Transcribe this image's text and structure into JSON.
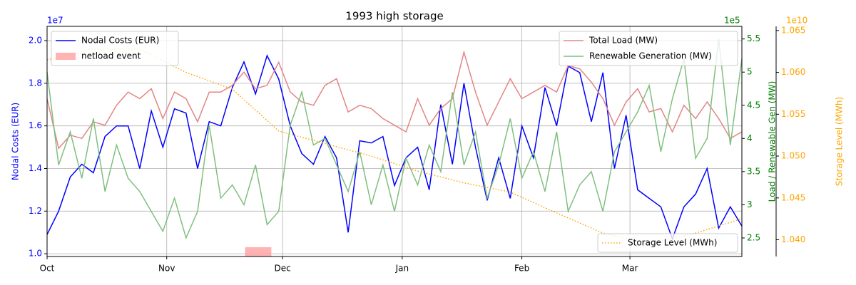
{
  "chart_data": {
    "type": "line",
    "title": "1993 high storage",
    "x": [
      0,
      3,
      6,
      9,
      12,
      15,
      18,
      21,
      24,
      27,
      30,
      33,
      36,
      39,
      42,
      45,
      48,
      51,
      54,
      57,
      60,
      63,
      66,
      69,
      72,
      75,
      78,
      81,
      84,
      87,
      90,
      93,
      96,
      99,
      102,
      105,
      108,
      111,
      114,
      117,
      120,
      123,
      126,
      129,
      132,
      135,
      138,
      141,
      144,
      147,
      150,
      153,
      156,
      159,
      162,
      165,
      168,
      171,
      174,
      177,
      180
    ],
    "xlim": [
      0,
      180
    ],
    "xticks": [
      {
        "value": 0,
        "label": "Oct"
      },
      {
        "value": 31,
        "label": "Nov"
      },
      {
        "value": 61,
        "label": "Dec"
      },
      {
        "value": 92,
        "label": "Jan"
      },
      {
        "value": 123,
        "label": "Feb"
      },
      {
        "value": 151,
        "label": "Mar"
      }
    ],
    "grid": true,
    "ylabel": "Nodal Costs (EUR)",
    "yoffset": "1e7",
    "ycolor": "blue",
    "ylim": [
      0.987,
      2.067
    ],
    "yticks": [
      {
        "value": 1.0,
        "label": "1.0"
      },
      {
        "value": 1.2,
        "label": "1.2"
      },
      {
        "value": 1.4,
        "label": "1.4"
      },
      {
        "value": 1.6,
        "label": "1.6"
      },
      {
        "value": 1.8,
        "label": "1.8"
      },
      {
        "value": 2.0,
        "label": "2.0"
      }
    ],
    "y2label": "Load / Renewable Gen (MW)",
    "y2offset": "1e5",
    "y2color": "green",
    "y2lim": [
      2.22,
      5.69
    ],
    "y2ticks": [
      2.5,
      3.0,
      3.5,
      4.0,
      4.5,
      5.0,
      5.5
    ],
    "y3label": "Storage Level (MWh)",
    "y3offset": "1e10",
    "y3color": "orange",
    "y3lim": [
      1.038,
      1.0655
    ],
    "y3ticks": [
      {
        "value": 1.04,
        "label": "1.040"
      },
      {
        "value": 1.045,
        "label": "1.045"
      },
      {
        "value": 1.05,
        "label": "1.050"
      },
      {
        "value": 1.055,
        "label": "1.055"
      },
      {
        "value": 1.06,
        "label": "1.060"
      },
      {
        "value": 1.065,
        "label": "1.065"
      }
    ],
    "series": [
      {
        "name": "Nodal Costs (EUR)",
        "color": "#0000ff",
        "axis": "y",
        "legend": "upper left",
        "values": [
          1.09,
          1.2,
          1.36,
          1.42,
          1.38,
          1.55,
          1.6,
          1.6,
          1.4,
          1.67,
          1.5,
          1.68,
          1.66,
          1.4,
          1.62,
          1.6,
          1.78,
          1.9,
          1.75,
          1.93,
          1.82,
          1.6,
          1.47,
          1.42,
          1.55,
          1.45,
          1.1,
          1.53,
          1.52,
          1.55,
          1.32,
          1.45,
          1.5,
          1.3,
          1.7,
          1.42,
          1.8,
          1.5,
          1.25,
          1.45,
          1.26,
          1.6,
          1.45,
          1.78,
          1.6,
          1.88,
          1.85,
          1.62,
          1.85,
          1.4,
          1.65,
          1.3,
          1.26,
          1.22,
          1.07,
          1.22,
          1.28,
          1.4,
          1.12,
          1.22,
          1.13
        ]
      },
      {
        "name": "Total Load (MW)",
        "color": "#e38585",
        "axis": "y2",
        "legend": "upper right",
        "values": [
          4.6,
          3.85,
          4.05,
          4.0,
          4.25,
          4.2,
          4.5,
          4.7,
          4.6,
          4.75,
          4.3,
          4.7,
          4.6,
          4.25,
          4.7,
          4.7,
          4.8,
          5.0,
          4.75,
          4.8,
          5.15,
          4.7,
          4.55,
          4.5,
          4.8,
          4.9,
          4.4,
          4.5,
          4.45,
          4.3,
          4.2,
          4.1,
          4.6,
          4.2,
          4.45,
          4.6,
          5.3,
          4.7,
          4.2,
          4.55,
          4.9,
          4.6,
          4.7,
          4.8,
          4.7,
          5.1,
          5.05,
          4.85,
          4.6,
          4.2,
          4.55,
          4.75,
          4.4,
          4.45,
          4.1,
          4.5,
          4.3,
          4.55,
          4.3,
          4.0,
          4.1
        ]
      },
      {
        "name": "Renewable Generation (MW)",
        "color": "#7fbf7f",
        "axis": "y2",
        "legend": "upper right",
        "values": [
          5.0,
          3.6,
          4.1,
          3.4,
          4.3,
          3.2,
          3.9,
          3.4,
          3.2,
          2.9,
          2.6,
          3.1,
          2.5,
          2.9,
          4.2,
          3.1,
          3.3,
          3.0,
          3.6,
          2.7,
          2.9,
          4.2,
          4.7,
          3.9,
          4.0,
          3.6,
          3.2,
          3.8,
          3.0,
          3.6,
          2.9,
          3.7,
          3.3,
          3.9,
          3.5,
          4.7,
          3.6,
          4.1,
          3.1,
          3.6,
          4.3,
          3.4,
          3.8,
          3.2,
          4.1,
          2.9,
          3.3,
          3.5,
          2.9,
          3.8,
          4.1,
          4.4,
          4.8,
          3.8,
          4.6,
          5.2,
          3.7,
          4.0,
          5.5,
          3.9,
          5.2
        ]
      },
      {
        "name": "Storage Level (MWh)",
        "color": "#ffa500",
        "axis": "y3",
        "legend": "lower right",
        "dash": "dotted",
        "x": [
          0,
          12,
          24,
          36,
          48,
          60,
          72,
          84,
          96,
          108,
          120,
          132,
          144,
          156,
          168,
          180
        ],
        "values": [
          1.0615,
          1.0628,
          1.0628,
          1.06,
          1.058,
          1.053,
          1.0515,
          1.05,
          1.0482,
          1.0468,
          1.0457,
          1.0432,
          1.0408,
          1.0395,
          1.0408,
          1.0425
        ]
      }
    ],
    "event": {
      "name": "netload event",
      "color": "#ff9999",
      "legend": "upper left",
      "x": [
        51.3,
        58.1
      ]
    }
  }
}
